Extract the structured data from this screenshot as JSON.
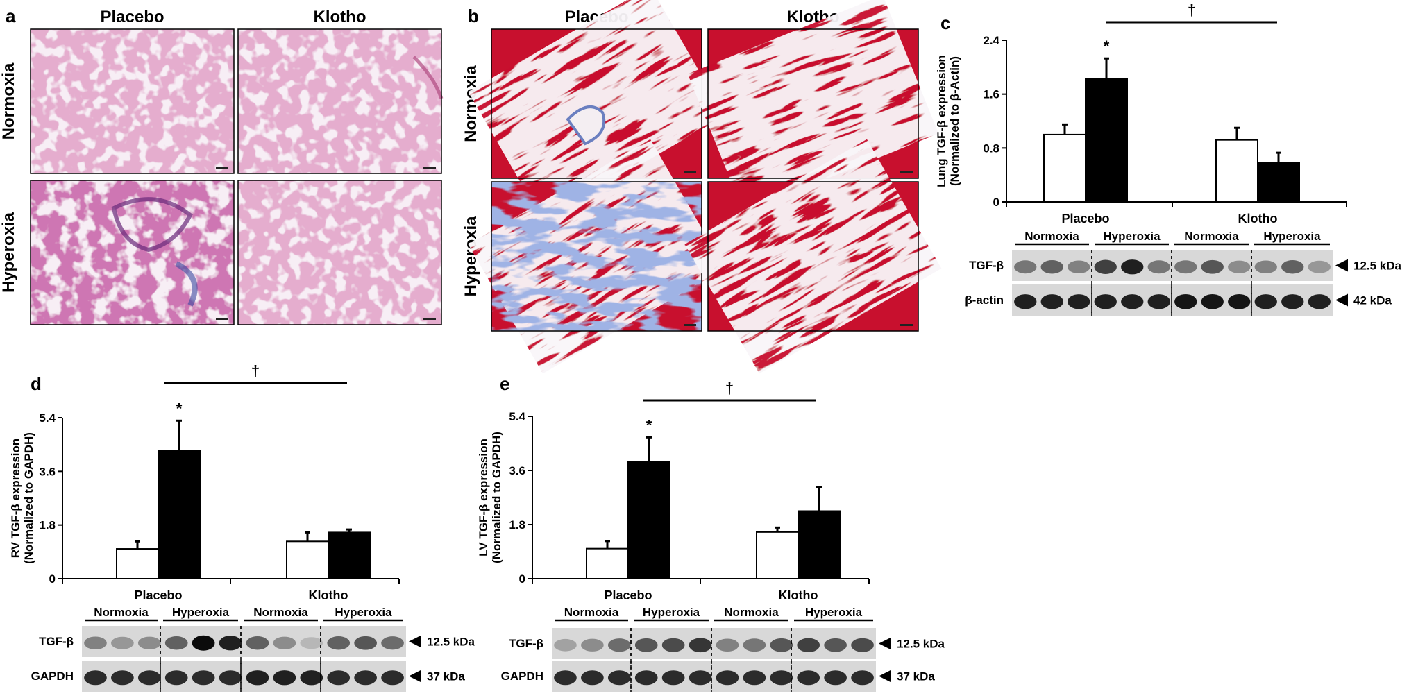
{
  "panels": {
    "a": {
      "letter": "a",
      "columns": [
        "Placebo",
        "Klotho"
      ],
      "rows": [
        "Normoxia",
        "Hyperoxia"
      ],
      "stain": "he"
    },
    "b": {
      "letter": "b",
      "columns": [
        "Placebo",
        "Klotho"
      ],
      "rows": [
        "Normoxia",
        "Hyperoxia"
      ],
      "stain": "trichrome"
    },
    "c": {
      "letter": "c",
      "blot_lanes": [
        "Normoxia",
        "Hyperoxia",
        "Normoxia",
        "Hyperoxia"
      ],
      "blot_rows": [
        {
          "protein": "TGF-β",
          "kda": "12.5 kDa",
          "intensities": [
            0.45,
            0.55,
            0.4,
            0.7,
            0.85,
            0.45,
            0.45,
            0.6,
            0.35,
            0.4,
            0.55,
            0.3
          ]
        },
        {
          "protein": "β-actin",
          "kda": "42 kDa",
          "intensities": [
            0.85,
            0.85,
            0.85,
            0.85,
            0.85,
            0.85,
            0.9,
            0.9,
            0.9,
            0.85,
            0.85,
            0.85
          ]
        }
      ]
    },
    "d": {
      "letter": "d",
      "blot_lanes": [
        "Normoxia",
        "Hyperoxia",
        "Normoxia",
        "Hyperoxia"
      ],
      "blot_rows": [
        {
          "protein": "TGF-β",
          "kda": "12.5 kDa",
          "intensities": [
            0.4,
            0.3,
            0.35,
            0.55,
            0.95,
            0.85,
            0.55,
            0.35,
            0.15,
            0.55,
            0.6,
            0.5
          ]
        },
        {
          "protein": "GAPDH",
          "kda": "37 kDa",
          "intensities": [
            0.8,
            0.8,
            0.8,
            0.8,
            0.8,
            0.8,
            0.85,
            0.85,
            0.85,
            0.8,
            0.8,
            0.8
          ]
        }
      ]
    },
    "e": {
      "letter": "e",
      "blot_lanes": [
        "Normoxia",
        "Hyperoxia",
        "Normoxia",
        "Hyperoxia"
      ],
      "blot_rows": [
        {
          "protein": "TGF-β",
          "kda": "12.5 kDa",
          "intensities": [
            0.25,
            0.35,
            0.5,
            0.6,
            0.65,
            0.75,
            0.4,
            0.45,
            0.6,
            0.7,
            0.6,
            0.65
          ]
        },
        {
          "protein": "GAPDH",
          "kda": "37 kDa",
          "intensities": [
            0.8,
            0.8,
            0.8,
            0.8,
            0.8,
            0.8,
            0.8,
            0.8,
            0.8,
            0.8,
            0.8,
            0.8
          ]
        }
      ]
    }
  },
  "chart_data": [
    {
      "panel": "c",
      "type": "bar",
      "ylabel": "Lung TGF-β expression",
      "ylabel2": "(Normalized to β-Actin)",
      "categories": [
        "Placebo",
        "Klotho"
      ],
      "series": [
        {
          "values": [
            1.0,
            0.92
          ],
          "errors": [
            0.15,
            0.18
          ],
          "color": "#ffffff"
        },
        {
          "values": [
            1.83,
            0.58
          ],
          "errors": [
            0.3,
            0.15
          ],
          "color": "#000000"
        }
      ],
      "ylim": [
        0,
        2.4
      ],
      "yticks": [
        "0",
        "0.8",
        "1.6",
        "2.4"
      ],
      "star": "*",
      "dagger": "†"
    },
    {
      "panel": "d",
      "type": "bar",
      "ylabel": "RV TGF-β expression",
      "ylabel2": "(Normalized to GAPDH)",
      "categories": [
        "Placebo",
        "Klotho"
      ],
      "series": [
        {
          "values": [
            1.0,
            1.25
          ],
          "errors": [
            0.25,
            0.3
          ],
          "color": "#ffffff"
        },
        {
          "values": [
            4.3,
            1.55
          ],
          "errors": [
            1.0,
            0.1
          ],
          "color": "#000000"
        }
      ],
      "ylim": [
        0,
        5.4
      ],
      "yticks": [
        "0",
        "1.8",
        "3.6",
        "5.4"
      ],
      "star": "*",
      "dagger": "†"
    },
    {
      "panel": "e",
      "type": "bar",
      "ylabel": "LV TGF-β expression",
      "ylabel2": "(Normalized to GAPDH)",
      "categories": [
        "Placebo",
        "Klotho"
      ],
      "series": [
        {
          "values": [
            1.0,
            1.55
          ],
          "errors": [
            0.25,
            0.15
          ],
          "color": "#ffffff"
        },
        {
          "values": [
            3.9,
            2.25
          ],
          "errors": [
            0.8,
            0.8
          ],
          "color": "#000000"
        }
      ],
      "ylim": [
        0,
        5.4
      ],
      "yticks": [
        "0",
        "1.8",
        "3.6",
        "5.4"
      ],
      "star": "*",
      "dagger": "†"
    }
  ]
}
